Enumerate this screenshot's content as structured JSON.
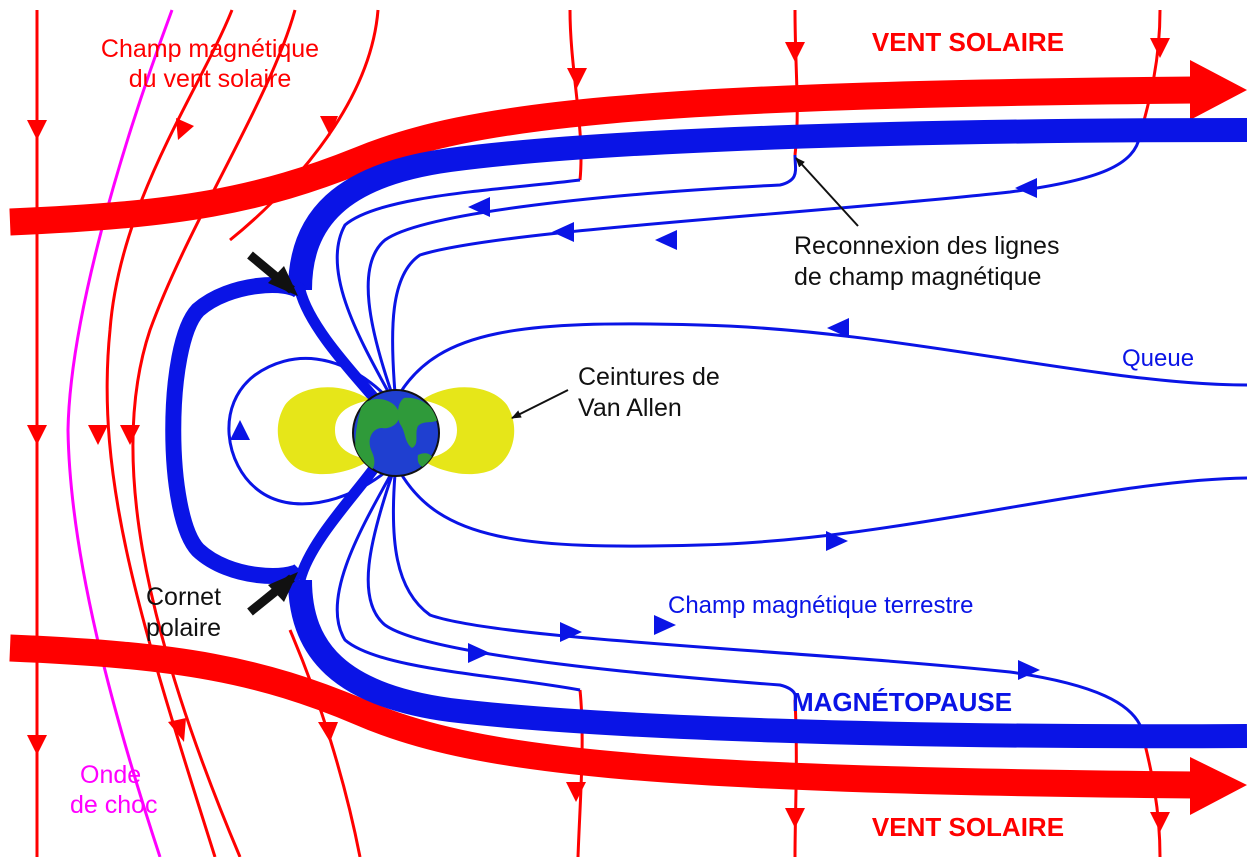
{
  "labels": {
    "solar_wind_field": [
      "Champ magnétique",
      "du vent solaire"
    ],
    "solar_wind_top": "VENT SOLAIRE",
    "solar_wind_bottom": "VENT SOLAIRE",
    "reconnection": [
      "Reconnexion des lignes",
      "de champ magnétique"
    ],
    "tail": "Queue",
    "van_allen": [
      "Ceintures de",
      "Van Allen"
    ],
    "polar_cusp": [
      "Cornet",
      "polaire"
    ],
    "earth_field": "Champ magnétique terrestre",
    "magnetopause": "MAGNÉTOPAUSE",
    "bow_shock": [
      "Onde",
      "de choc"
    ]
  },
  "colors": {
    "solar_wind": "#ff0000",
    "magnetosphere": "#0a14e6",
    "bow_shock": "#ff00ff",
    "van_allen_belts": "#e6e619",
    "earth_ocean": "#1f3fd0",
    "earth_land": "#2f9a3a",
    "pointer": "#111111"
  },
  "icons": {
    "earth": "earth-globe-icon",
    "cusp_pointer": "arrow-pointer-icon"
  }
}
